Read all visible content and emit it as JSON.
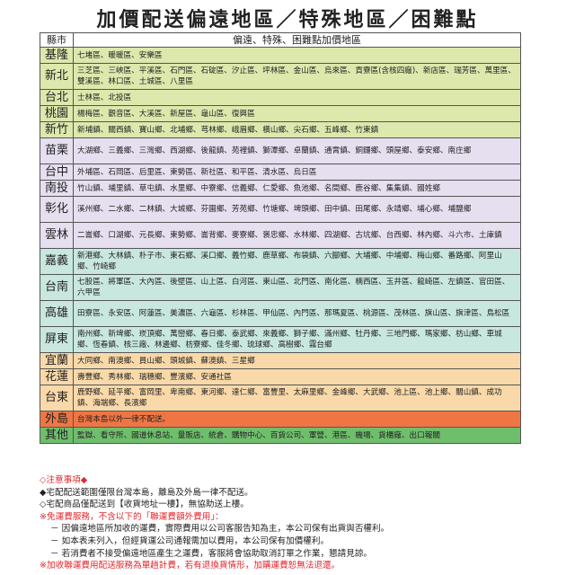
{
  "title": "加價配送偏遠地區／特殊地區／困難點",
  "header": {
    "county": "縣市",
    "areas": "偏遠、特殊、困難點加價地區"
  },
  "colors": {
    "yellow": "#dde8ad",
    "purple": "#e6dff0",
    "teal": "#c8e7df",
    "peach": "#f9d9a9",
    "orange": "#ef7644",
    "green": "#6fbe6c",
    "note_red": "#e0282e"
  },
  "rows": [
    {
      "county": "基隆",
      "areas": "七堵區、暖暖區、安樂區"
    },
    {
      "county": "新北",
      "areas": "三芝區、三峽區、平溪區、石門區、石碇區、汐止區、坪林區、金山區、烏來區、貢寮區(含核四廠)、新店區、瑞芳區、萬里區、雙溪區、林口區、土城區、八里區"
    },
    {
      "county": "台北",
      "areas": "士林區、北投區"
    },
    {
      "county": "桃園",
      "areas": "楊梅區、觀音區、大溪區、新屋區、龜山區、復興區"
    },
    {
      "county": "新竹",
      "areas": "新埔鎮、關西鎮、寶山鄉、北埔鄉、芎林鄉、峨眉鄉、橫山鄉、尖石鄉、五峰鄉、竹東鎮"
    },
    {
      "county": "苗栗",
      "areas": "大湖鄉、三義鄉、三灣鄉、西湖鄉、後龍鎮、苑裡鎮、獅潭鄉、卓蘭鎮、通霄鎮、銅鑼鄉、頭屋鄉、泰安鄉、南庄鄉"
    },
    {
      "county": "台中",
      "areas": "外埔區、石岡區、后里區、東勢區、新社區、和平區、清水區、烏日區"
    },
    {
      "county": "南投",
      "areas": "竹山鎮、埔里鎮、草屯鎮、水里鄉、中寮鄉、信義鄉、仁愛鄉、魚池鄉、名間鄉、鹿谷鄉、集集鎮、國姓鄉"
    },
    {
      "county": "彰化",
      "areas": "溪州鄉、二水鄉、二林鎮、大城鄉、芬園鄉、芳苑鄉、竹塘鄉、埤頭鄉、田中鎮、田尾鄉、永靖鄉、埔心鄉、埔鹽鄉"
    },
    {
      "county": "雲林",
      "areas": "二崙鄉、口湖鄉、元長鄉、東勢鄉、崙背鄉、麥寮鄉、褒忠鄉、水林鄉、四湖鄉、古坑鄉、台西鄉、林內鄉、斗六市、土庫鎮"
    },
    {
      "county": "嘉義",
      "areas": "新港鄉、大林鎮、朴子市、東石鄉、溪口鄉、義竹鄉、鹿草鄉、布袋鎮、六腳鄉、大埔鄉、中埔鄉、梅山鄉、番路鄉、阿里山鄉、竹崎鄉"
    },
    {
      "county": "台南",
      "areas": "七股區、將軍區、大內區、後壁區、山上區、白河區、東山區、北門區、南化區、楠西區、玉井區、龍崎區、左鎮區、官田區、六甲區"
    },
    {
      "county": "高雄",
      "areas": "田寮區、永安區、阿蓮區、美濃區、六龜區、杉林區、甲仙區、內門區、那瑪夏區、桃源區、茂林區、旗山區、旗津區、鳥松區"
    },
    {
      "county": "屏東",
      "areas": "南州鄉、新埤鄉、崁頂鄉、萬巒鄉、春日鄉、泰武鄉、來義鄉、獅子鄉、滿州鄉、牡丹鄉、三地門鄉、瑪家鄉、枋山鄉、車城鄉、恆春鎮、核三廠、林邊鄉、枋寮鄉、佳冬鄉、琉球鄉、高樹鄉、霧台鄉"
    },
    {
      "county": "宜蘭",
      "areas": "大同鄉、南澳鄉、員山鄉、頭城鎮、蘇澳鎮、三星鄉"
    },
    {
      "county": "花蓮",
      "areas": "壽豐鄉、秀林鄉、瑞穗鄉、豐濱鄉、安通社區"
    },
    {
      "county": "台東",
      "areas": "鹿野鄉、延平鄉、富岡里、卑南鄉、東河鄉、達仁鄉、富豐里、太麻里鄉、金峰鄉、大武鄉、池上區、池上鄉、關山鎮、成功鎮、海端鄉、長濱鄉"
    },
    {
      "county": "外島",
      "areas": "台灣本島以外一律不配送。"
    },
    {
      "county": "其他",
      "areas": "監獄、看守所、國道休息站、量販店、統倉、購物中心、百貨公司、軍營、港區、機場、貨櫃廠、出口報關"
    }
  ],
  "notes": {
    "heading": "◇注意事項◆",
    "line1": "◆宅配配送範圍僅限台灣本島，離島及外島一律不配送。",
    "line2": "◇宅配商品僅配送到【收貨地址一樓】，無協助送上樓。",
    "line3": "※免運費服務，不含以下的「聯運費額外費用」：",
    "line4": "－ 因偏遠地區所加收的運費，實際費用以公司客服告知為主，本公司保有出貨與否權利。",
    "line5": "－ 如本表未列入，但經貨運公司通報需加以費用，本公司保有加價權利。",
    "line6": "－ 若消費者不接受偏遠地區產生之運費，客服將會協助取消訂單之作業，懇請見諒。",
    "line7": "※加收聯運費用配送服務為單趟計費，若有退換貨情形，加購運費恕無法退還。"
  }
}
